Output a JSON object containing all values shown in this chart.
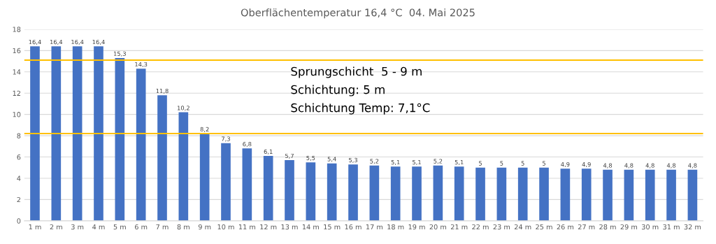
{
  "chart_data": {
    "type": "bar",
    "title": "Oberflächentemperatur 16,4 °C  04. Mai 2025",
    "categories": [
      "1 m",
      "2 m",
      "3 m",
      "4 m",
      "5 m",
      "6 m",
      "7 m",
      "8 m",
      "9 m",
      "10 m",
      "11 m",
      "12 m",
      "13 m",
      "14 m",
      "15 m",
      "16 m",
      "17 m",
      "18 m",
      "19 m",
      "20 m",
      "21 m",
      "22 m",
      "23 m",
      "24 m",
      "25 m",
      "26 m",
      "27 m",
      "28 m",
      "29 m",
      "30 m",
      "31 m",
      "32 m"
    ],
    "values": [
      16.4,
      16.4,
      16.4,
      16.4,
      15.3,
      14.3,
      11.8,
      10.2,
      8.2,
      7.3,
      6.8,
      6.1,
      5.7,
      5.5,
      5.4,
      5.3,
      5.2,
      5.1,
      5.1,
      5.2,
      5.1,
      5,
      5,
      5,
      5,
      4.9,
      4.9,
      4.8,
      4.8,
      4.8,
      4.8,
      4.8
    ],
    "value_labels": [
      "16,4",
      "16,4",
      "16,4",
      "16,4",
      "15,3",
      "14,3",
      "11,8",
      "10,2",
      "8,2",
      "7,3",
      "6,8",
      "6,1",
      "5,7",
      "5,5",
      "5,4",
      "5,3",
      "5,2",
      "5,1",
      "5,1",
      "5,2",
      "5,1",
      "5",
      "5",
      "5",
      "5",
      "4,9",
      "4,9",
      "4,8",
      "4,8",
      "4,8",
      "4,8",
      "4,8"
    ],
    "color": "#4472c4",
    "ylim": [
      0,
      18
    ],
    "yticks": [
      0,
      2,
      4,
      6,
      8,
      10,
      12,
      14,
      16,
      18
    ],
    "grid": "y",
    "ref_lines": [
      {
        "axis": "y",
        "value": 15.1,
        "color": "#ffc000"
      },
      {
        "axis": "y",
        "value": 8.2,
        "color": "#ffc000"
      }
    ],
    "annotations": [
      "Sprungschicht  5 - 9 m",
      "Schichtung: 5 m",
      "Schichtung Temp: 7,1°C"
    ]
  }
}
